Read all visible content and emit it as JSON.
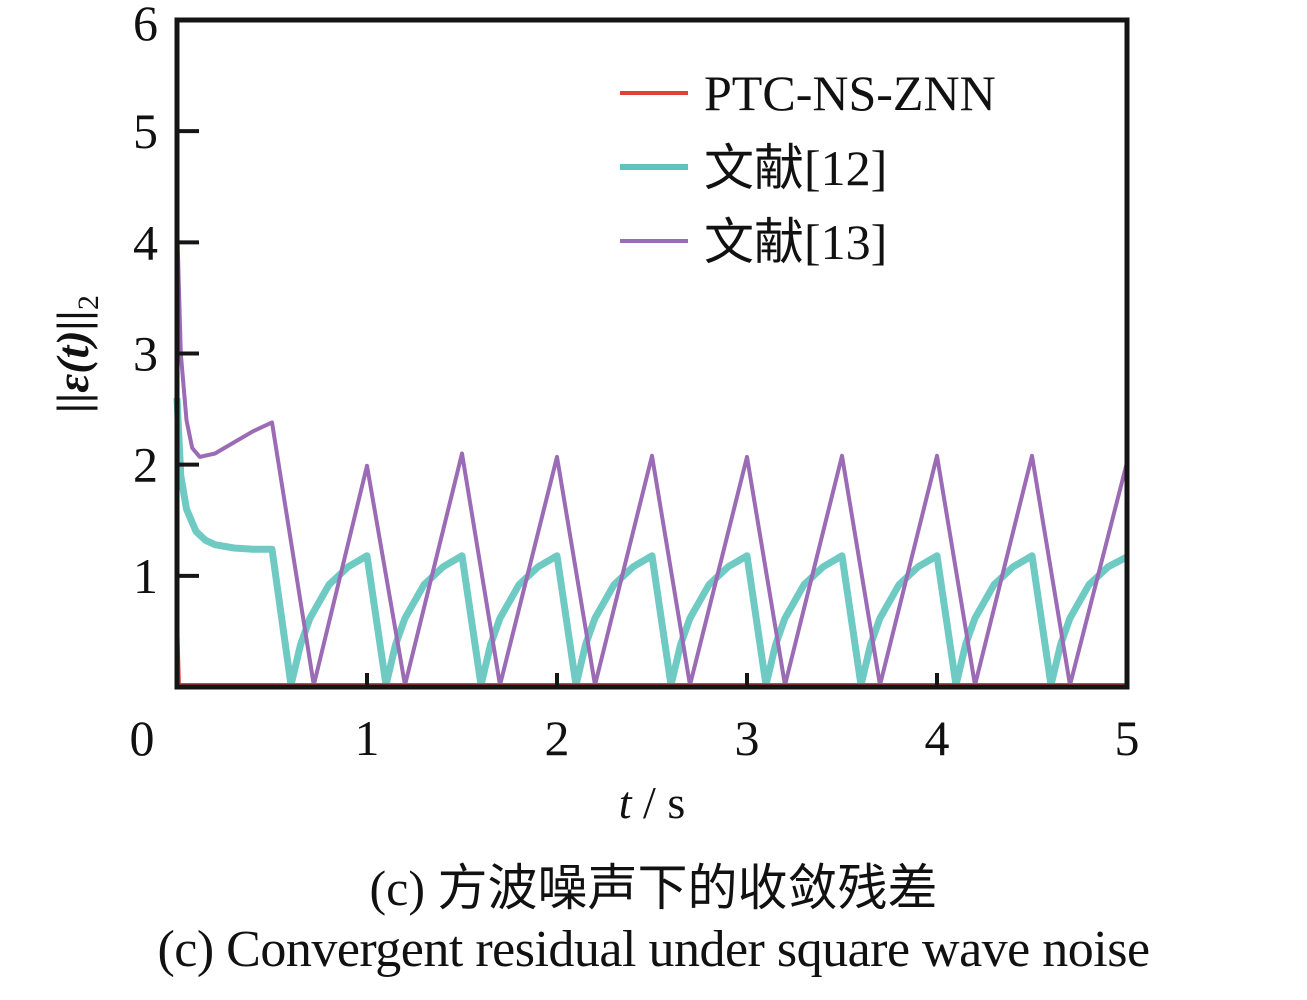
{
  "chart_data": {
    "type": "line",
    "title": "",
    "xlabel_var": "t",
    "xlabel_unit": " / s",
    "ylabel": "||ε(t)||",
    "ylabel_sub": "2",
    "xlim": [
      0,
      5
    ],
    "ylim": [
      0,
      6
    ],
    "xticks": [
      "0",
      "1",
      "2",
      "3",
      "4",
      "5"
    ],
    "yticks": [
      "1",
      "2",
      "3",
      "4",
      "5",
      "6"
    ],
    "grid": false,
    "legend_position": "top-right",
    "series": [
      {
        "name": "PTC-NS-ZNN",
        "color": "#e0403a",
        "x": [
          0,
          0.002,
          0.01,
          5
        ],
        "y": [
          6,
          0.5,
          0,
          0
        ]
      },
      {
        "name": "文献[12]",
        "color": "#5ec4bd",
        "x": [
          0,
          0.02,
          0.05,
          0.1,
          0.15,
          0.2,
          0.3,
          0.4,
          0.5,
          0.6,
          0.65,
          0.7,
          0.8,
          0.9,
          1.0,
          1.1,
          1.15,
          1.2,
          1.3,
          1.4,
          1.5,
          1.6,
          1.65,
          1.7,
          1.8,
          1.9,
          2.0,
          2.1,
          2.15,
          2.2,
          2.3,
          2.4,
          2.5,
          2.6,
          2.65,
          2.7,
          2.8,
          2.9,
          3.0,
          3.1,
          3.15,
          3.2,
          3.3,
          3.4,
          3.5,
          3.6,
          3.65,
          3.7,
          3.8,
          3.9,
          4.0,
          4.1,
          4.15,
          4.2,
          4.3,
          4.4,
          4.5,
          4.6,
          4.65,
          4.7,
          4.8,
          4.9,
          5.0
        ],
        "y": [
          2.6,
          1.9,
          1.6,
          1.4,
          1.32,
          1.28,
          1.25,
          1.24,
          1.24,
          0.0,
          0.38,
          0.62,
          0.92,
          1.08,
          1.18,
          0.0,
          0.38,
          0.62,
          0.92,
          1.08,
          1.18,
          0.0,
          0.38,
          0.62,
          0.92,
          1.08,
          1.18,
          0.0,
          0.38,
          0.62,
          0.92,
          1.08,
          1.18,
          0.0,
          0.38,
          0.62,
          0.92,
          1.08,
          1.18,
          0.0,
          0.38,
          0.62,
          0.92,
          1.08,
          1.18,
          0.0,
          0.38,
          0.62,
          0.92,
          1.08,
          1.18,
          0.0,
          0.38,
          0.62,
          0.92,
          1.08,
          1.18,
          0.0,
          0.38,
          0.62,
          0.92,
          1.08,
          1.17
        ]
      },
      {
        "name": "文献[13]",
        "color": "#9b6bb5",
        "x": [
          0,
          0.02,
          0.05,
          0.08,
          0.12,
          0.2,
          0.3,
          0.4,
          0.5,
          0.72,
          1.0,
          1.2,
          1.5,
          1.7,
          2.0,
          2.2,
          2.5,
          2.7,
          3.0,
          3.2,
          3.5,
          3.7,
          4.0,
          4.2,
          4.5,
          4.7,
          5.0
        ],
        "y": [
          4.2,
          3.0,
          2.4,
          2.15,
          2.07,
          2.1,
          2.2,
          2.3,
          2.38,
          0.0,
          1.99,
          0.0,
          2.1,
          0.0,
          2.07,
          0.0,
          2.08,
          0.0,
          2.07,
          0.0,
          2.08,
          0.0,
          2.08,
          0.0,
          2.08,
          0.0,
          2.02
        ]
      }
    ]
  },
  "captions": {
    "cn": "(c)  方波噪声下的收敛残差",
    "en": "(c)  Convergent residual under square wave noise"
  }
}
